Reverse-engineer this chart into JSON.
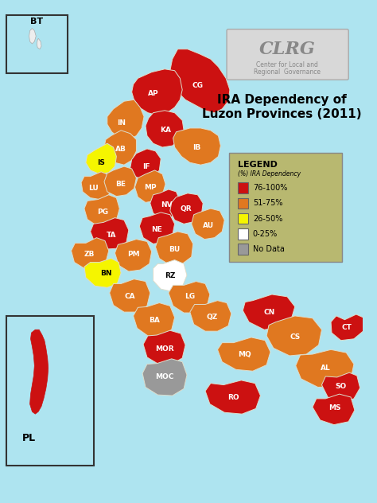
{
  "figsize": [
    4.74,
    6.32
  ],
  "dpi": 100,
  "bg_color": "#aee4f0",
  "title_line1": "IRA Dependency of",
  "title_line2": "Luzon Provinces (2011)",
  "clrg_text": "CLRG",
  "clrg_sub1": "Center for Local and",
  "clrg_sub2": "Regional  Governance",
  "legend_title": "LEGEND",
  "legend_subtitle": "(%) IRA Dependency",
  "legend_items": [
    {
      "label": "76-100%",
      "color": "#cc1111"
    },
    {
      "label": "51-75%",
      "color": "#e07820"
    },
    {
      "label": "26-50%",
      "color": "#f5f500"
    },
    {
      "label": "0-25%",
      "color": "#ffffff"
    },
    {
      "label": "No Data",
      "color": "#999999"
    }
  ],
  "legend_bg": "#b8b870",
  "colors": {
    "red": "#cc1111",
    "orange": "#e07820",
    "yellow": "#f5f500",
    "white": "#ffffff",
    "gray": "#999999"
  },
  "province_color": {
    "AP": "red",
    "CG": "red",
    "KA": "red",
    "IF": "red",
    "NV": "red",
    "QR": "red",
    "NE": "red",
    "TA": "red",
    "MOR": "red",
    "RO": "red",
    "CT": "red",
    "SO": "red",
    "MS": "red",
    "CN": "red",
    "PL": "red",
    "IN": "orange",
    "AB": "orange",
    "IB": "orange",
    "MP": "orange",
    "BE": "orange",
    "LU": "orange",
    "PG": "orange",
    "AU": "orange",
    "PM": "orange",
    "BU": "orange",
    "CA": "orange",
    "LG": "orange",
    "QZ": "orange",
    "BA": "orange",
    "CS": "orange",
    "MQ": "orange",
    "AL": "orange",
    "ZB": "orange",
    "IS": "yellow",
    "BN": "yellow",
    "RZ": "white",
    "MOC": "gray"
  }
}
